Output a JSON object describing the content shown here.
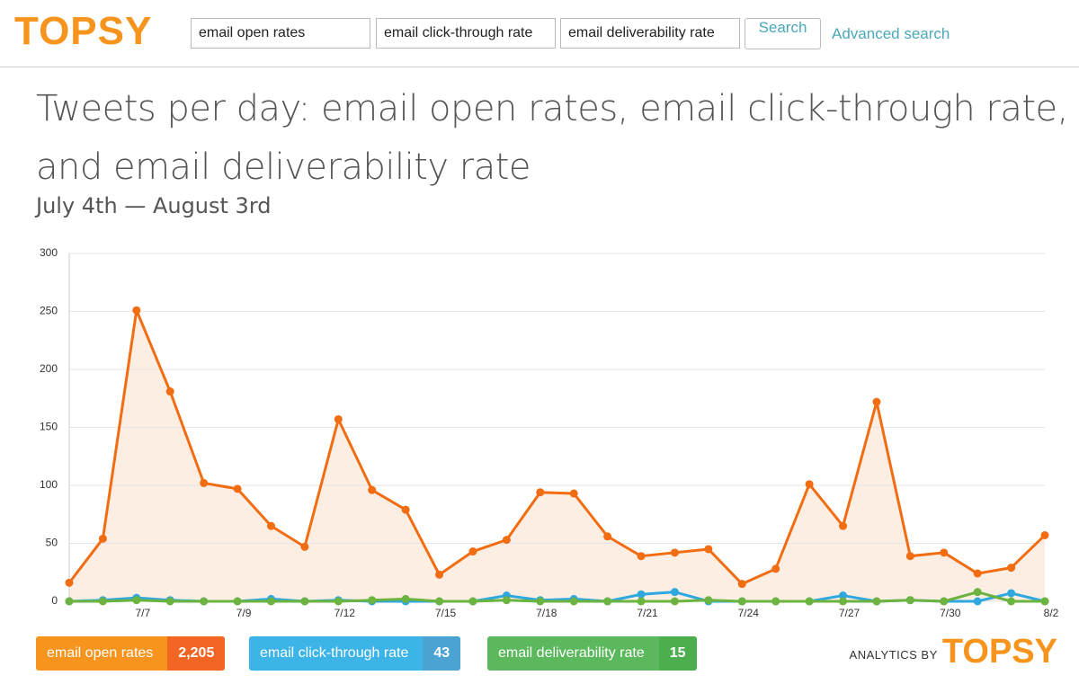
{
  "header": {
    "logo": "TOPSY",
    "search_fields": [
      "email open rates",
      "email click-through rate",
      "email deliverability rate"
    ],
    "search_button": "Search",
    "advanced_search": "Advanced search"
  },
  "chart_data": {
    "type": "line",
    "title_line1": "Tweets per day: email open rates, email click-through rate,",
    "title_line2": "and email deliverability rate",
    "subtitle": "July 4th — August 3rd",
    "categories": [
      null,
      null,
      "7/7",
      null,
      null,
      "7/9",
      null,
      null,
      "7/12",
      null,
      null,
      "7/15",
      null,
      null,
      "7/18",
      null,
      null,
      "7/21",
      null,
      null,
      "7/24",
      null,
      null,
      "7/27",
      null,
      null,
      "7/30",
      null,
      null,
      "8/2"
    ],
    "series": [
      {
        "name": "email open rates",
        "color": "#f26d12",
        "area_color": "#fdeee4",
        "legend_color": "#f7941d",
        "total_color": "#f26522",
        "total": "2,205",
        "values": [
          16,
          54,
          251,
          181,
          102,
          97,
          65,
          47,
          157,
          96,
          79,
          23,
          43,
          53,
          94,
          93,
          56,
          39,
          42,
          45,
          15,
          28,
          101,
          65,
          172,
          39,
          42,
          24,
          29,
          57
        ]
      },
      {
        "name": "email click-through rate",
        "color": "#2fa8e0",
        "legend_color": "#3cb4e8",
        "total_color": "#4aa3d3",
        "total": "43",
        "values": [
          0,
          1,
          3,
          1,
          0,
          0,
          2,
          0,
          1,
          0,
          0,
          0,
          0,
          5,
          1,
          2,
          0,
          6,
          8,
          0,
          0,
          0,
          0,
          5,
          0,
          1,
          0,
          0,
          7,
          0
        ]
      },
      {
        "name": "email deliverability rate",
        "color": "#6cb33f",
        "legend_color": "#5cb85c",
        "total_color": "#4cae4c",
        "total": "15",
        "values": [
          0,
          0,
          1,
          0,
          0,
          0,
          0,
          0,
          0,
          1,
          2,
          0,
          0,
          1,
          0,
          0,
          0,
          0,
          0,
          1,
          0,
          0,
          0,
          0,
          0,
          1,
          0,
          8,
          0,
          0
        ]
      }
    ],
    "ylim": [
      0,
      300
    ],
    "yticks": [
      0,
      50,
      100,
      150,
      200,
      250,
      300
    ],
    "grid": true
  },
  "footer": {
    "prefix": "ANALYTICS BY",
    "logo": "TOPSY"
  }
}
